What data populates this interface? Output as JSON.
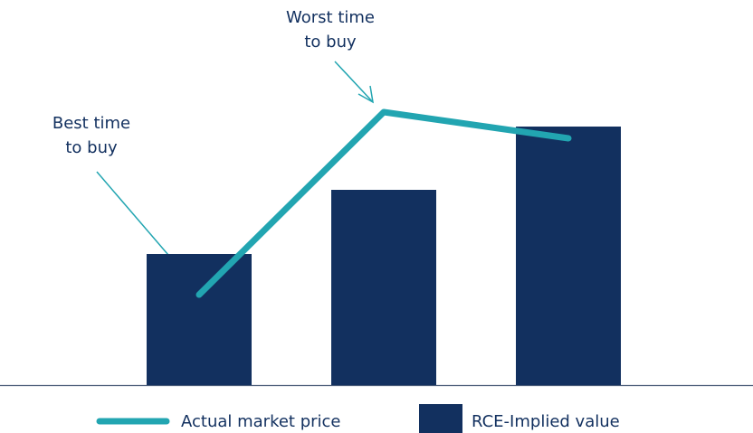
{
  "chart_data": {
    "type": "bar_line",
    "categories": [
      null,
      null,
      null
    ],
    "series": [
      {
        "name": "RCE-Implied value",
        "color": "#12305f",
        "kind": "bar",
        "values": [
          145,
          216,
          286
        ]
      },
      {
        "name": "Actual market price",
        "color": "#22a5b1",
        "kind": "line",
        "values": [
          100,
          302,
          273
        ]
      }
    ],
    "ylim": [
      0,
      426
    ],
    "annotations": [
      {
        "text": [
          "Best time",
          "to buy"
        ],
        "point": 0
      },
      {
        "text": [
          "Worst time",
          "to buy"
        ],
        "point": 1
      }
    ]
  }
}
